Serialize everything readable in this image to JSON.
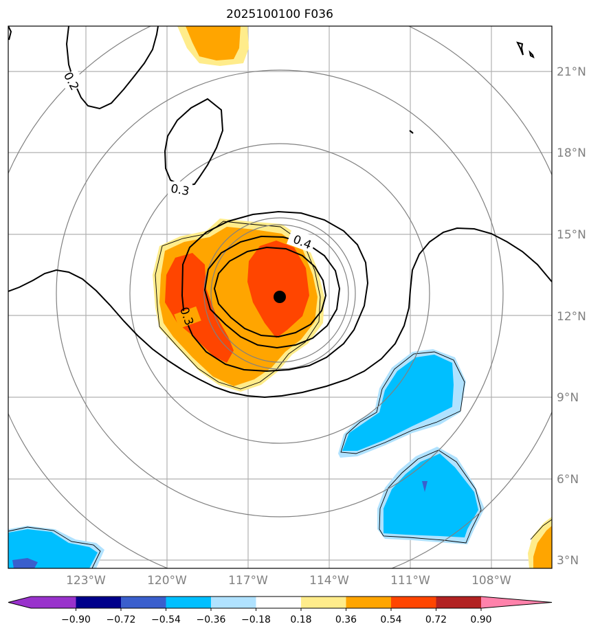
{
  "title": "2025100100 F036",
  "map": {
    "lon_range": [
      -125,
      -106.5
    ],
    "lat_range": [
      2.7,
      22.3
    ],
    "lon_ticks": [
      "123°W",
      "120°W",
      "117°W",
      "114°W",
      "111°W",
      "108°W"
    ],
    "lat_ticks": [
      "21°N",
      "18°N",
      "15°N",
      "12°N",
      "9°N",
      "6°N",
      "3°N"
    ],
    "center_marker": {
      "lon": -115.9,
      "lat": 12.7
    },
    "contour_labels": [
      "0.2",
      "0.3",
      "0.4",
      "0.3"
    ]
  },
  "colorbar": {
    "ticks": [
      "−0.90",
      "−0.72",
      "−0.54",
      "−0.36",
      "−0.18",
      "0.18",
      "0.36",
      "0.54",
      "0.72",
      "0.90"
    ],
    "colors": [
      "#9932cc",
      "#00008b",
      "#3a5fcd",
      "#00bfff",
      "#b0e2ff",
      "#ffffff",
      "#ffec8b",
      "#ffa500",
      "#ff4500",
      "#b22222",
      "#ff82ab"
    ]
  }
}
